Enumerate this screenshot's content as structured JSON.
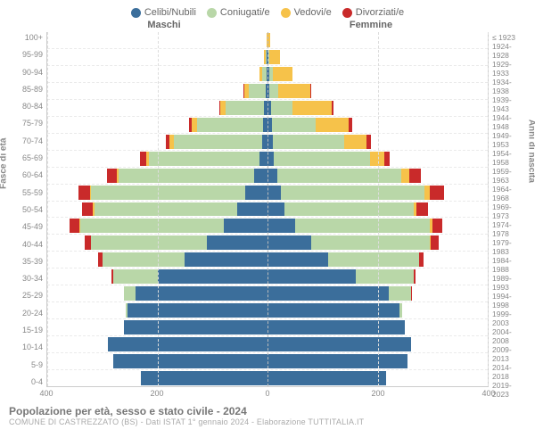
{
  "legend": {
    "items": [
      {
        "label": "Celibi/Nubili",
        "color": "#3b6e9b"
      },
      {
        "label": "Coniugati/e",
        "color": "#b9d7a8"
      },
      {
        "label": "Vedovi/e",
        "color": "#f6c24a"
      },
      {
        "label": "Divorziati/e",
        "color": "#c92a2a"
      }
    ]
  },
  "top_labels": {
    "male": "Maschi",
    "female": "Femmine"
  },
  "y_title_left": "Fasce di età",
  "y_title_right": "Anni di nascita",
  "x_axis": {
    "max": 400,
    "ticks": [
      -400,
      -200,
      0,
      200,
      400
    ],
    "tick_labels": [
      "400",
      "200",
      "0",
      "200",
      "400"
    ]
  },
  "colors": {
    "celibi": "#3b6e9b",
    "coniugati": "#b9d7a8",
    "vedovi": "#f6c24a",
    "divorziati": "#c92a2a",
    "grid": "#dddddd",
    "grid_center": "#bbbbbb",
    "row_dash": "#eaeaea",
    "background": "#ffffff",
    "label": "#888888"
  },
  "age_labels": [
    "100+",
    "95-99",
    "90-94",
    "85-89",
    "80-84",
    "75-79",
    "70-74",
    "65-69",
    "60-64",
    "55-59",
    "50-54",
    "45-49",
    "40-44",
    "35-39",
    "30-34",
    "25-29",
    "20-24",
    "15-19",
    "10-14",
    "5-9",
    "0-4"
  ],
  "birth_labels": [
    "≤ 1923",
    "1924-1928",
    "1929-1933",
    "1934-1938",
    "1939-1943",
    "1944-1948",
    "1949-1953",
    "1954-1958",
    "1959-1963",
    "1964-1968",
    "1969-1973",
    "1974-1978",
    "1979-1983",
    "1984-1988",
    "1989-1993",
    "1994-1998",
    "1999-2003",
    "2004-2008",
    "2009-2013",
    "2014-2018",
    "2019-2023"
  ],
  "rows": [
    {
      "m": {
        "ce": 0,
        "co": 0,
        "ve": 2,
        "di": 0
      },
      "f": {
        "ce": 0,
        "co": 0,
        "ve": 5,
        "di": 0
      }
    },
    {
      "m": {
        "ce": 2,
        "co": 2,
        "ve": 2,
        "di": 0
      },
      "f": {
        "ce": 2,
        "co": 2,
        "ve": 18,
        "di": 0
      }
    },
    {
      "m": {
        "ce": 2,
        "co": 8,
        "ve": 4,
        "di": 0
      },
      "f": {
        "ce": 4,
        "co": 6,
        "ve": 35,
        "di": 0
      }
    },
    {
      "m": {
        "ce": 4,
        "co": 30,
        "ve": 8,
        "di": 2
      },
      "f": {
        "ce": 4,
        "co": 15,
        "ve": 58,
        "di": 2
      }
    },
    {
      "m": {
        "ce": 6,
        "co": 70,
        "ve": 10,
        "di": 2
      },
      "f": {
        "ce": 6,
        "co": 40,
        "ve": 70,
        "di": 4
      }
    },
    {
      "m": {
        "ce": 8,
        "co": 120,
        "ve": 10,
        "di": 4
      },
      "f": {
        "ce": 8,
        "co": 80,
        "ve": 60,
        "di": 6
      }
    },
    {
      "m": {
        "ce": 10,
        "co": 160,
        "ve": 8,
        "di": 6
      },
      "f": {
        "ce": 10,
        "co": 130,
        "ve": 40,
        "di": 8
      }
    },
    {
      "m": {
        "ce": 15,
        "co": 200,
        "ve": 6,
        "di": 10
      },
      "f": {
        "ce": 12,
        "co": 175,
        "ve": 25,
        "di": 10
      }
    },
    {
      "m": {
        "ce": 25,
        "co": 245,
        "ve": 4,
        "di": 18
      },
      "f": {
        "ce": 18,
        "co": 225,
        "ve": 15,
        "di": 20
      }
    },
    {
      "m": {
        "ce": 40,
        "co": 280,
        "ve": 2,
        "di": 22
      },
      "f": {
        "ce": 25,
        "co": 260,
        "ve": 10,
        "di": 25
      }
    },
    {
      "m": {
        "ce": 55,
        "co": 260,
        "ve": 2,
        "di": 20
      },
      "f": {
        "ce": 30,
        "co": 235,
        "ve": 6,
        "di": 20
      }
    },
    {
      "m": {
        "ce": 80,
        "co": 260,
        "ve": 2,
        "di": 18
      },
      "f": {
        "ce": 50,
        "co": 245,
        "ve": 4,
        "di": 18
      }
    },
    {
      "m": {
        "ce": 110,
        "co": 210,
        "ve": 0,
        "di": 12
      },
      "f": {
        "ce": 80,
        "co": 215,
        "ve": 2,
        "di": 14
      }
    },
    {
      "m": {
        "ce": 150,
        "co": 150,
        "ve": 0,
        "di": 8
      },
      "f": {
        "ce": 110,
        "co": 165,
        "ve": 0,
        "di": 8
      }
    },
    {
      "m": {
        "ce": 200,
        "co": 80,
        "ve": 0,
        "di": 4
      },
      "f": {
        "ce": 160,
        "co": 105,
        "ve": 0,
        "di": 4
      }
    },
    {
      "m": {
        "ce": 240,
        "co": 20,
        "ve": 0,
        "di": 0
      },
      "f": {
        "ce": 220,
        "co": 40,
        "ve": 0,
        "di": 2
      }
    },
    {
      "m": {
        "ce": 255,
        "co": 2,
        "ve": 0,
        "di": 0
      },
      "f": {
        "ce": 240,
        "co": 5,
        "ve": 0,
        "di": 0
      }
    },
    {
      "m": {
        "ce": 260,
        "co": 0,
        "ve": 0,
        "di": 0
      },
      "f": {
        "ce": 250,
        "co": 0,
        "ve": 0,
        "di": 0
      }
    },
    {
      "m": {
        "ce": 290,
        "co": 0,
        "ve": 0,
        "di": 0
      },
      "f": {
        "ce": 260,
        "co": 0,
        "ve": 0,
        "di": 0
      }
    },
    {
      "m": {
        "ce": 280,
        "co": 0,
        "ve": 0,
        "di": 0
      },
      "f": {
        "ce": 255,
        "co": 0,
        "ve": 0,
        "di": 0
      }
    },
    {
      "m": {
        "ce": 230,
        "co": 0,
        "ve": 0,
        "di": 0
      },
      "f": {
        "ce": 215,
        "co": 0,
        "ve": 0,
        "di": 0
      }
    }
  ],
  "footer": {
    "title": "Popolazione per età, sesso e stato civile - 2024",
    "sub": "COMUNE DI CASTREZZATO (BS) - Dati ISTAT 1° gennaio 2024 - Elaborazione TUTTITALIA.IT"
  }
}
